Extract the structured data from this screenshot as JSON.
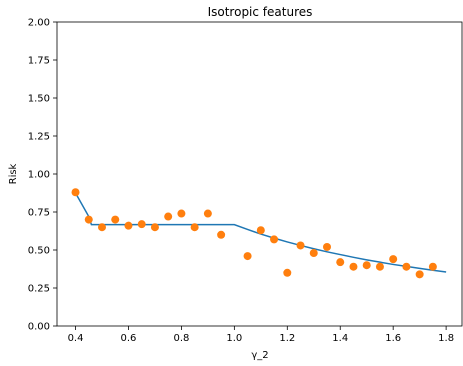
{
  "chart_data": {
    "type": "line+scatter",
    "title": "Isotropic features",
    "xlabel": "γ_2",
    "ylabel": "Risk",
    "xlim": [
      0.33,
      1.86
    ],
    "ylim": [
      0.0,
      2.0
    ],
    "xticks": [
      "0.4",
      "0.6",
      "0.8",
      "1.0",
      "1.2",
      "1.4",
      "1.6",
      "1.8"
    ],
    "yticks": [
      "0.00",
      "0.25",
      "0.50",
      "0.75",
      "1.00",
      "1.25",
      "1.50",
      "1.75",
      "2.00"
    ],
    "grid": false,
    "series": [
      {
        "kind": "line",
        "color": "#1f77b4",
        "x": [
          0.4,
          0.45,
          0.46,
          0.5,
          0.6,
          0.7,
          0.8,
          0.9,
          1.0,
          1.05,
          1.1,
          1.15,
          1.2,
          1.25,
          1.3,
          1.35,
          1.4,
          1.45,
          1.5,
          1.55,
          1.6,
          1.65,
          1.7,
          1.75,
          1.8
        ],
        "y": [
          0.875,
          0.72,
          0.667,
          0.667,
          0.667,
          0.667,
          0.667,
          0.667,
          0.667,
          0.635,
          0.605,
          0.578,
          0.553,
          0.53,
          0.508,
          0.488,
          0.47,
          0.452,
          0.435,
          0.42,
          0.405,
          0.392,
          0.379,
          0.367,
          0.355
        ]
      },
      {
        "kind": "scatter",
        "color": "#ff7f0e",
        "x": [
          0.4,
          0.45,
          0.5,
          0.55,
          0.6,
          0.65,
          0.7,
          0.75,
          0.8,
          0.85,
          0.9,
          0.95,
          1.05,
          1.1,
          1.15,
          1.2,
          1.25,
          1.3,
          1.35,
          1.4,
          1.45,
          1.5,
          1.55,
          1.6,
          1.65,
          1.7,
          1.75
        ],
        "y": [
          0.88,
          0.7,
          0.65,
          0.7,
          0.66,
          0.67,
          0.65,
          0.72,
          0.74,
          0.65,
          0.74,
          0.6,
          0.46,
          0.63,
          0.57,
          0.35,
          0.53,
          0.48,
          0.52,
          0.42,
          0.39,
          0.4,
          0.39,
          0.44,
          0.39,
          0.34,
          0.39
        ]
      }
    ]
  }
}
